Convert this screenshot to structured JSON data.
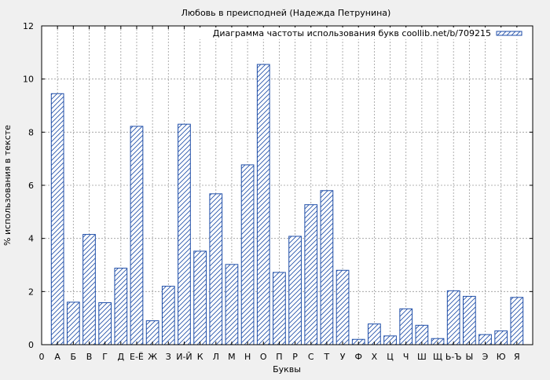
{
  "chart_data": {
    "type": "bar",
    "title": "Любовь в преисподней (Надежда Петрунина)",
    "xlabel": "Буквы",
    "ylabel": "% использования в тексте",
    "ylim": [
      0,
      12
    ],
    "yticks": [
      0,
      2,
      4,
      6,
      8,
      10,
      12
    ],
    "grid": true,
    "legend_position": "top-right",
    "categories": [
      "0",
      "А",
      "Б",
      "В",
      "Г",
      "Д",
      "Е-Ё",
      "Ж",
      "З",
      "И-Й",
      "К",
      "Л",
      "М",
      "Н",
      "О",
      "П",
      "Р",
      "С",
      "Т",
      "У",
      "Ф",
      "Х",
      "Ц",
      "Ч",
      "Ш",
      "Щ",
      "Ь-Ъ",
      "Ы",
      "Э",
      "Ю",
      "Я"
    ],
    "series": [
      {
        "name": "Диаграмма частоты использования букв coollib.net/b/709215",
        "color": "#1f4ea8",
        "values": [
          0,
          9.45,
          1.6,
          4.15,
          1.58,
          2.88,
          8.22,
          0.9,
          2.2,
          8.3,
          3.52,
          5.68,
          3.02,
          6.77,
          10.55,
          2.72,
          4.08,
          5.27,
          5.8,
          2.8,
          0.2,
          0.78,
          0.33,
          1.35,
          0.73,
          0.23,
          2.03,
          1.82,
          0.38,
          0.52,
          1.78
        ]
      }
    ]
  }
}
